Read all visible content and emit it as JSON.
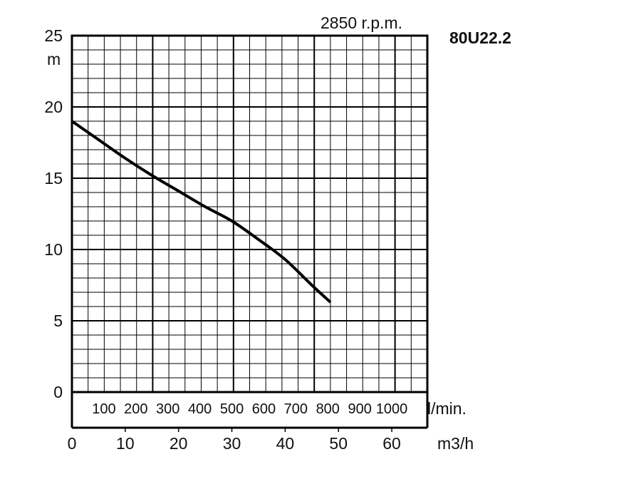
{
  "chart_data": {
    "type": "line",
    "title": "80U22.2",
    "subtitle": "2850 r.p.m.",
    "ylabel": "m",
    "xlabel": "m3/h",
    "secondary_xlabel": "l/min.",
    "xlim": [
      0,
      66.67
    ],
    "ylim": [
      0,
      25
    ],
    "grid": true,
    "y_ticks": [
      "0",
      "5",
      "10",
      "15",
      "20",
      "25"
    ],
    "x_ticks": [
      "0",
      "10",
      "20",
      "30",
      "40",
      "50",
      "60"
    ],
    "secondary_x_ticks": [
      "100",
      "200",
      "300",
      "400",
      "500",
      "600",
      "700",
      "800",
      "900",
      "1000"
    ],
    "series": [
      {
        "x": [
          0,
          5,
          10,
          15,
          20,
          25,
          30,
          35,
          40,
          45,
          48.5
        ],
        "y": [
          19.0,
          17.7,
          16.4,
          15.2,
          14.1,
          13.0,
          12.0,
          10.7,
          9.3,
          7.5,
          6.3
        ]
      }
    ]
  }
}
